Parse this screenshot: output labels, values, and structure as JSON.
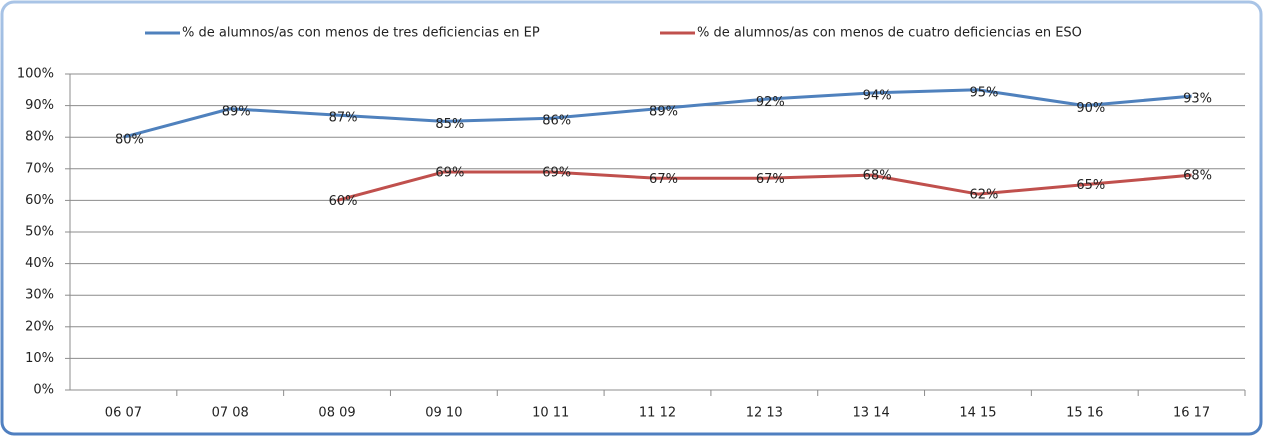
{
  "chart_data": {
    "type": "line",
    "categories": [
      "06 07",
      "07 08",
      "08 09",
      "09 10",
      "10 11",
      "11 12",
      "12 13",
      "13 14",
      "14 15",
      "15 16",
      "16 17"
    ],
    "series": [
      {
        "name": "% de alumnos/as con menos de tres deficiencias en EP",
        "color": "#4f81bd",
        "values": [
          80,
          89,
          87,
          85,
          86,
          89,
          92,
          94,
          95,
          90,
          93
        ],
        "value_labels": [
          "80%",
          "89%",
          "87%",
          "85%",
          "86%",
          "89%",
          "92%",
          "94%",
          "95%",
          "90%",
          "93%"
        ]
      },
      {
        "name": "% de alumnos/as con menos de cuatro deficiencias en ESO",
        "color": "#c0504d",
        "values": [
          null,
          null,
          60,
          69,
          69,
          67,
          67,
          68,
          62,
          65,
          68
        ],
        "value_labels": [
          null,
          null,
          "60%",
          "69%",
          "69%",
          "67%",
          "67%",
          "68%",
          "62%",
          "65%",
          "68%"
        ]
      }
    ],
    "ylim": [
      0,
      100
    ],
    "yticks": [
      {
        "value": 0,
        "label": "0%"
      },
      {
        "value": 10,
        "label": "10%"
      },
      {
        "value": 20,
        "label": "20%"
      },
      {
        "value": 30,
        "label": "30%"
      },
      {
        "value": 40,
        "label": "40%"
      },
      {
        "value": 50,
        "label": "50%"
      },
      {
        "value": 60,
        "label": "60%"
      },
      {
        "value": 70,
        "label": "70%"
      },
      {
        "value": 80,
        "label": "80%"
      },
      {
        "value": 90,
        "label": "90%"
      },
      {
        "value": 100,
        "label": "100%"
      }
    ],
    "grid": true,
    "legend": "top"
  }
}
